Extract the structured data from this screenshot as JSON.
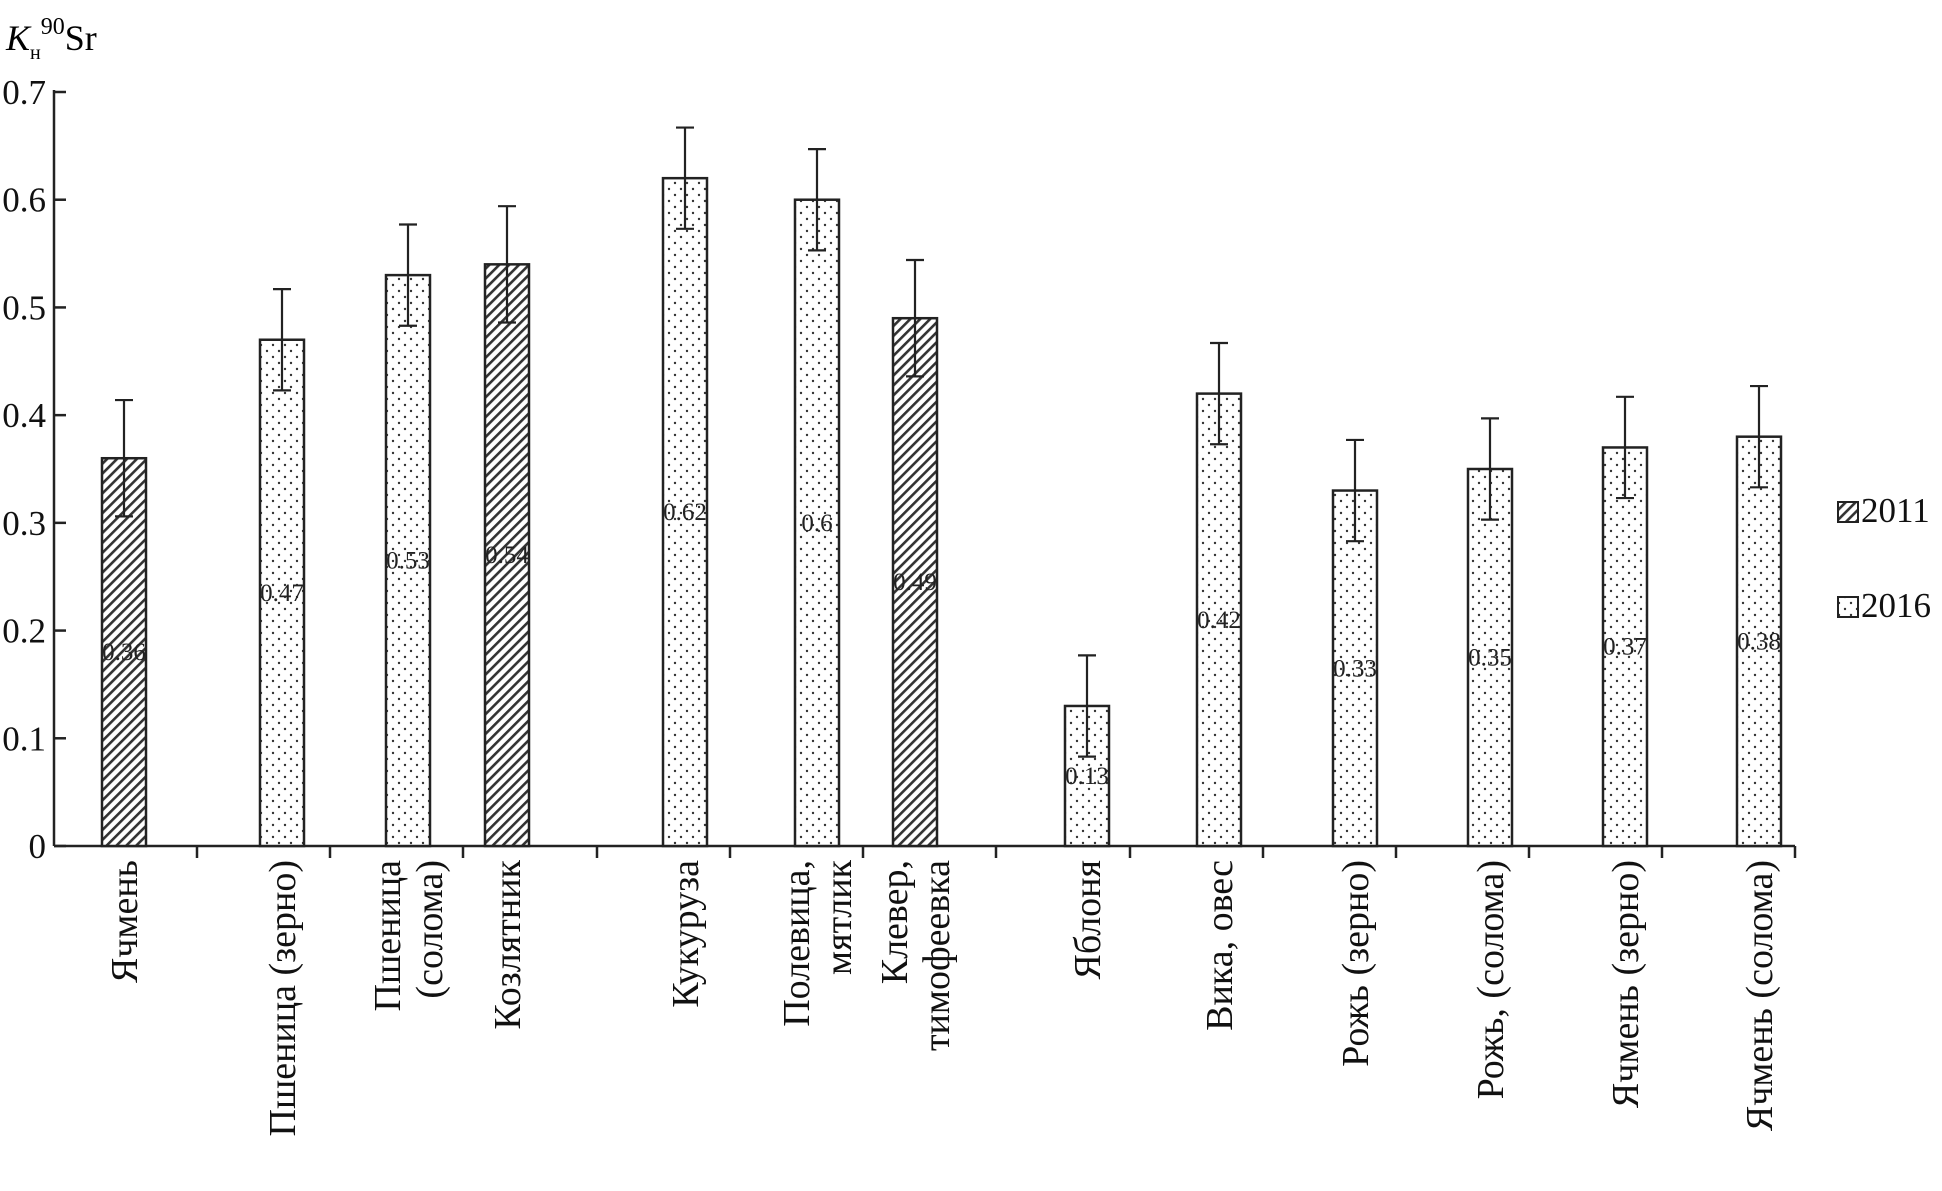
{
  "chart_data": {
    "type": "bar",
    "ylabel": {
      "base": "K",
      "sub": "н",
      "sup": "90",
      "rest": "Sr"
    },
    "ylim": [
      0,
      0.7
    ],
    "yticks": [
      "0",
      "0.1",
      "0.2",
      "0.3",
      "0.4",
      "0.5",
      "0.6",
      "0.7"
    ],
    "grid": false,
    "legend_position": "right",
    "series": [
      {
        "name": "2011",
        "pattern": "hatch"
      },
      {
        "name": "2016",
        "pattern": "dots"
      }
    ],
    "categories": [
      {
        "lines": [
          "Ячмень"
        ],
        "value": 0.36,
        "label": "0.36",
        "series": "2011",
        "err": 0.054
      },
      {
        "lines": [
          "Пшеница  (зерно)"
        ],
        "value": 0.47,
        "label": "0.47",
        "series": "2016",
        "err": 0.047
      },
      {
        "lines": [
          "Пшеница",
          "(солома)"
        ],
        "value": 0.53,
        "label": "0.53",
        "series": "2016",
        "err": 0.047
      },
      {
        "lines": [
          "Козлятник"
        ],
        "value": 0.54,
        "label": "0.54",
        "series": "2011",
        "err": 0.054
      },
      {
        "lines": [
          "Кукуруза"
        ],
        "value": 0.62,
        "label": "0.62",
        "series": "2016",
        "err": 0.047
      },
      {
        "lines": [
          "Полевица,",
          "мятлик"
        ],
        "value": 0.6,
        "label": "0.6",
        "series": "2016",
        "err": 0.047
      },
      {
        "lines": [
          "Клевер,",
          "тимофеевка"
        ],
        "value": 0.49,
        "label": "0.49",
        "series": "2011",
        "err": 0.054
      },
      {
        "lines": [
          "Яблоня"
        ],
        "value": 0.13,
        "label": "0.13",
        "series": "2016",
        "err": 0.047
      },
      {
        "lines": [
          "Вика,  овес"
        ],
        "value": 0.42,
        "label": "0.42",
        "series": "2016",
        "err": 0.047
      },
      {
        "lines": [
          "Рожь (зерно)"
        ],
        "value": 0.33,
        "label": "0.33",
        "series": "2016",
        "err": 0.047
      },
      {
        "lines": [
          "Рожь, (солома)"
        ],
        "value": 0.35,
        "label": "0.35",
        "series": "2016",
        "err": 0.047
      },
      {
        "lines": [
          "Ячмень (зерно)"
        ],
        "value": 0.37,
        "label": "0.37",
        "series": "2016",
        "err": 0.047
      },
      {
        "lines": [
          "Ячмень (солома)"
        ],
        "value": 0.38,
        "label": "0.38",
        "series": "2016",
        "err": 0.047
      }
    ]
  }
}
